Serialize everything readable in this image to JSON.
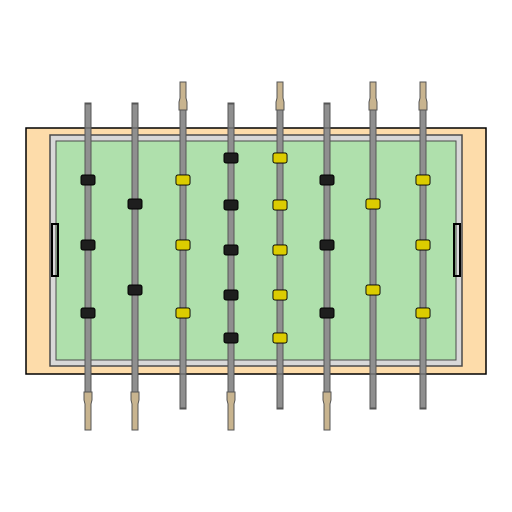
{
  "colors": {
    "background": "#ffffff",
    "cabinet": "#fddcaa",
    "outline": "#000000",
    "field": "#afe0ac",
    "field_border": "#4a4a4a",
    "rod": "#8f8f8f",
    "rod_shadow": "#555555",
    "handle": "#c8b48f",
    "black_team": "#1e1e1e",
    "yellow_team": "#ffee00"
  },
  "rods": [
    {
      "team": "black",
      "players": 3,
      "handle_side": "bottom"
    },
    {
      "team": "black",
      "players": 2,
      "handle_side": "bottom"
    },
    {
      "team": "yellow",
      "players": 3,
      "handle_side": "top"
    },
    {
      "team": "black",
      "players": 5,
      "handle_side": "bottom"
    },
    {
      "team": "yellow",
      "players": 5,
      "handle_side": "top"
    },
    {
      "team": "black",
      "players": 3,
      "handle_side": "bottom"
    },
    {
      "team": "yellow",
      "players": 2,
      "handle_side": "top"
    },
    {
      "team": "yellow",
      "players": 3,
      "handle_side": "top"
    }
  ]
}
